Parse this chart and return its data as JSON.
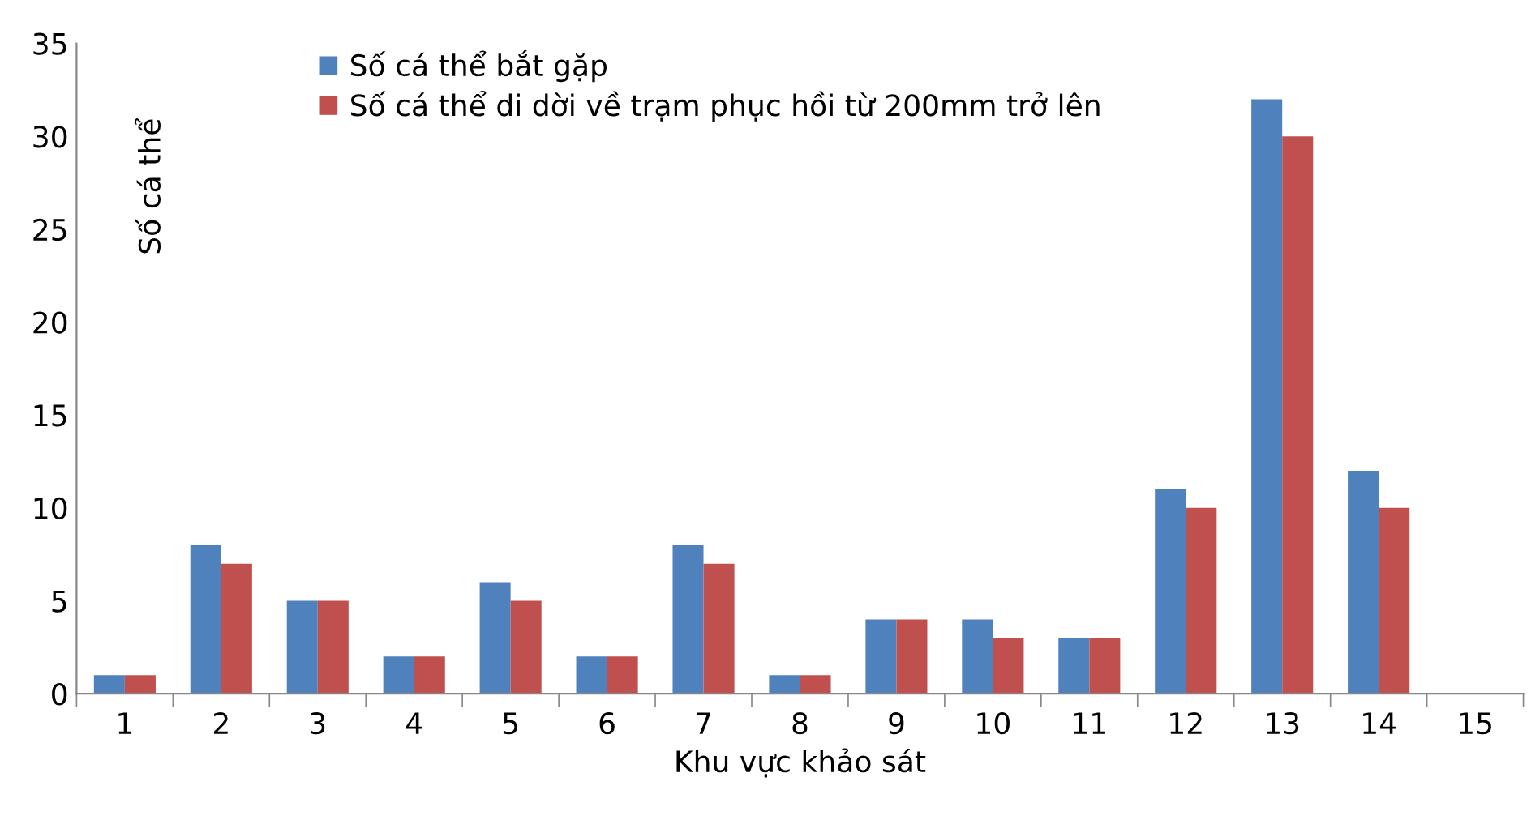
{
  "chart_data": {
    "type": "bar",
    "xlabel": "Khu vực khảo sát",
    "ylabel": "Số cá thể",
    "categories": [
      "1",
      "2",
      "3",
      "4",
      "5",
      "6",
      "7",
      "8",
      "9",
      "10",
      "11",
      "12",
      "13",
      "14",
      "15"
    ],
    "series": [
      {
        "name": "Số cá thể bắt gặp",
        "color": "#4f81bd",
        "values": [
          1,
          8,
          5,
          2,
          6,
          2,
          8,
          1,
          4,
          4,
          3,
          11,
          32,
          12,
          null
        ]
      },
      {
        "name": "Số cá thể di dời về trạm phục hồi từ 200mm trở lên",
        "color": "#c0504d",
        "values": [
          1,
          7,
          5,
          2,
          5,
          2,
          7,
          1,
          4,
          3,
          3,
          10,
          30,
          10,
          null
        ]
      }
    ],
    "ylim": [
      0,
      35
    ],
    "yticks": [
      0,
      5,
      10,
      15,
      20,
      25,
      30,
      35
    ],
    "grid": false,
    "legend": "top left"
  }
}
